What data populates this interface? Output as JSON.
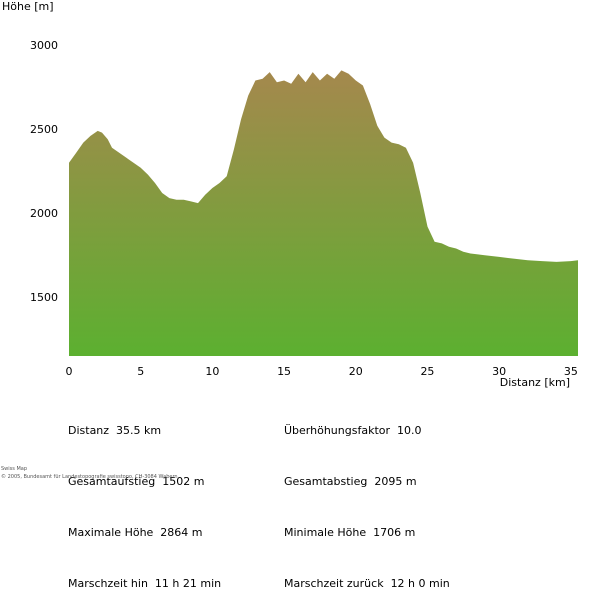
{
  "chart_data": {
    "type": "area",
    "ylabel": "Höhe [m]",
    "xlabel": "Distanz [km]",
    "xlim": [
      0,
      35.5
    ],
    "ylim": [
      1150,
      3150
    ],
    "x_ticks": [
      0,
      5,
      10,
      15,
      20,
      25,
      30,
      35
    ],
    "y_ticks": [
      1500,
      2000,
      2500,
      3000
    ],
    "fill_top_color": "#a5884d",
    "fill_bottom_color": "#5cb030",
    "x": [
      0,
      0.5,
      1,
      1.5,
      2,
      2.3,
      2.7,
      3,
      3.5,
      4,
      4.5,
      5,
      5.5,
      6,
      6.5,
      7,
      7.5,
      8,
      8.5,
      9,
      9.5,
      10,
      10.5,
      11,
      11.5,
      12,
      12.5,
      13,
      13.5,
      14,
      14.5,
      15,
      15.5,
      16,
      16.5,
      17,
      17.5,
      18,
      18.5,
      19,
      19.5,
      20,
      20.5,
      21,
      21.5,
      22,
      22.5,
      23,
      23.5,
      24,
      24.5,
      25,
      25.5,
      26,
      26.5,
      27,
      27.5,
      28,
      29,
      30,
      31,
      32,
      33,
      34,
      35,
      35.5
    ],
    "y": [
      2300,
      2360,
      2420,
      2460,
      2490,
      2480,
      2440,
      2390,
      2360,
      2330,
      2300,
      2270,
      2230,
      2180,
      2120,
      2090,
      2080,
      2080,
      2070,
      2060,
      2110,
      2150,
      2180,
      2220,
      2380,
      2560,
      2700,
      2790,
      2800,
      2840,
      2780,
      2790,
      2770,
      2830,
      2780,
      2840,
      2790,
      2830,
      2800,
      2850,
      2830,
      2790,
      2760,
      2650,
      2520,
      2450,
      2420,
      2410,
      2390,
      2300,
      2120,
      1920,
      1830,
      1820,
      1800,
      1790,
      1770,
      1760,
      1750,
      1740,
      1730,
      1720,
      1715,
      1710,
      1715,
      1720
    ]
  },
  "stats": {
    "distance": "Distanz  35.5 km",
    "ascent": "Gesamtaufstieg  1502 m",
    "max_height": "Maximale Höhe  2864 m",
    "time_there": "Marschzeit hin  11 h 21 min",
    "exaggeration": "Überhöhungsfaktor  10.0",
    "descent": "Gesamtabstieg  2095 m",
    "min_height": "Minimale Höhe  1706 m",
    "time_back": "Marschzeit zurück  12 h 0 min"
  },
  "credits": {
    "line1": "Swiss Map",
    "line2": "© 2005, Bundesamt für Landestopografie swisstopo, CH-3084 Wabern"
  }
}
